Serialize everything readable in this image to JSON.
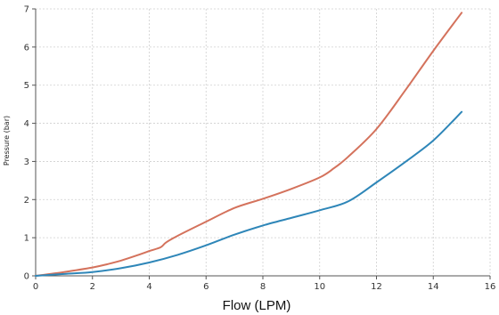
{
  "chart_data": {
    "type": "line",
    "title": "",
    "xlabel": "Flow (LPM)",
    "ylabel": "Pressure (bar)",
    "xlim": [
      0,
      16
    ],
    "ylim": [
      0,
      7
    ],
    "xticks": [
      0,
      2,
      4,
      6,
      8,
      10,
      12,
      14,
      16
    ],
    "yticks": [
      0,
      1,
      2,
      3,
      4,
      5,
      6,
      7
    ],
    "grid": true,
    "legend": "none",
    "series": [
      {
        "color": "#d4725c",
        "x": [
          0,
          1,
          2,
          2.5,
          3,
          3.5,
          4,
          4.4,
          4.6,
          5,
          6,
          7,
          8,
          9,
          10,
          10.5,
          11,
          12,
          13,
          14,
          15
        ],
        "y": [
          0,
          0.1,
          0.22,
          0.3,
          0.4,
          0.52,
          0.65,
          0.75,
          0.88,
          1.05,
          1.42,
          1.78,
          2.02,
          2.28,
          2.58,
          2.82,
          3.12,
          3.85,
          4.85,
          5.9,
          6.9
        ]
      },
      {
        "color": "#2e86b8",
        "x": [
          0,
          1,
          2,
          3,
          4,
          5,
          6,
          7,
          8,
          9,
          10,
          11,
          12,
          13,
          14,
          15
        ],
        "y": [
          0,
          0.05,
          0.1,
          0.2,
          0.35,
          0.55,
          0.8,
          1.08,
          1.32,
          1.52,
          1.72,
          1.95,
          2.45,
          2.98,
          3.55,
          4.3
        ]
      }
    ]
  }
}
